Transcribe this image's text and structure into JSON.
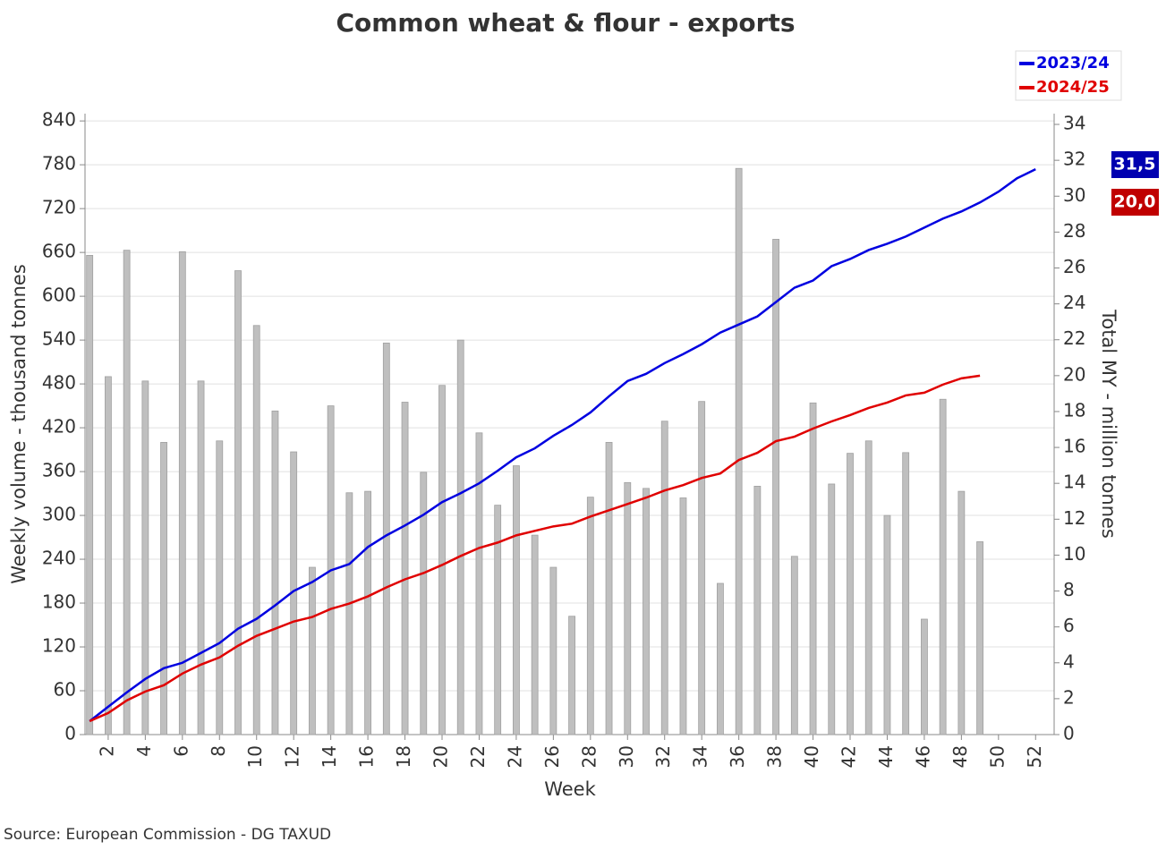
{
  "chart_data": {
    "type": "bar_line",
    "title": "Common wheat & flour - exports",
    "x_label": "Week",
    "y_label": "Weekly volume - thousand tonnes",
    "y2_label": "Total MY - million tonnes",
    "source": "Source: European Commission - DG TAXUD",
    "x": [
      1,
      2,
      3,
      4,
      5,
      6,
      7,
      8,
      9,
      10,
      11,
      12,
      13,
      14,
      15,
      16,
      17,
      18,
      19,
      20,
      21,
      22,
      23,
      24,
      25,
      26,
      27,
      28,
      29,
      30,
      31,
      32,
      33,
      34,
      35,
      36,
      37,
      38,
      39,
      40,
      41,
      42,
      43,
      44,
      45,
      46,
      47,
      48,
      49,
      50,
      51,
      52
    ],
    "xlim": [
      0.75,
      53
    ],
    "xticks": [
      2,
      4,
      6,
      8,
      10,
      12,
      14,
      16,
      18,
      20,
      22,
      24,
      26,
      28,
      30,
      32,
      34,
      36,
      38,
      40,
      42,
      44,
      46,
      48,
      50,
      52
    ],
    "ylim": [
      0,
      850
    ],
    "yticks": [
      0,
      60,
      120,
      180,
      240,
      300,
      360,
      420,
      480,
      540,
      600,
      660,
      720,
      780,
      840
    ],
    "y2lim": [
      0,
      34.6
    ],
    "y2ticks": [
      0,
      2,
      4,
      6,
      8,
      10,
      12,
      14,
      16,
      18,
      20,
      22,
      24,
      26,
      28,
      30,
      32,
      34
    ],
    "grid": true,
    "legend": "top-right",
    "bar_color": "#bfbfbf",
    "bar_values": [
      656,
      490,
      663,
      484,
      400,
      661,
      484,
      402,
      635,
      560,
      443,
      387,
      229,
      450,
      331,
      333,
      536,
      455,
      359,
      478,
      540,
      413,
      314,
      368,
      273,
      229,
      162,
      325,
      400,
      345,
      337,
      429,
      324,
      456,
      207,
      775,
      340,
      678,
      244,
      454,
      343,
      385,
      402,
      300,
      386,
      158,
      459,
      333,
      264,
      0,
      0,
      0
    ],
    "series": [
      {
        "name": "2023/24",
        "color": "#0000e0",
        "axis": "y2",
        "end_label": "31,5",
        "end_color": "#0000b0",
        "values": [
          0.75,
          1.55,
          2.35,
          3.1,
          3.7,
          4.0,
          4.55,
          5.1,
          5.9,
          6.45,
          7.2,
          8.0,
          8.5,
          9.15,
          9.5,
          10.45,
          11.1,
          11.65,
          12.25,
          12.95,
          13.45,
          14.0,
          14.7,
          15.45,
          15.95,
          16.65,
          17.25,
          17.95,
          18.85,
          19.7,
          20.1,
          20.7,
          21.2,
          21.75,
          22.4,
          22.85,
          23.3,
          24.1,
          24.9,
          25.3,
          26.1,
          26.5,
          27.0,
          27.35,
          27.75,
          28.25,
          28.75,
          29.15,
          29.65,
          30.25,
          31.0,
          31.5
        ]
      },
      {
        "name": "2024/25",
        "color": "#e00000",
        "axis": "y2",
        "end_label": "20,0",
        "end_color": "#c00000",
        "values": [
          0.75,
          1.2,
          1.9,
          2.4,
          2.75,
          3.4,
          3.9,
          4.3,
          4.95,
          5.5,
          5.9,
          6.3,
          6.55,
          7.0,
          7.3,
          7.7,
          8.2,
          8.65,
          9.0,
          9.45,
          9.95,
          10.4,
          10.7,
          11.1,
          11.35,
          11.6,
          11.75,
          12.15,
          12.5,
          12.85,
          13.2,
          13.6,
          13.9,
          14.3,
          14.55,
          15.3,
          15.7,
          16.35,
          16.6,
          17.05,
          17.45,
          17.8,
          18.2,
          18.5,
          18.9,
          19.05,
          19.5,
          19.85,
          20.0,
          null,
          null,
          null
        ]
      }
    ]
  }
}
